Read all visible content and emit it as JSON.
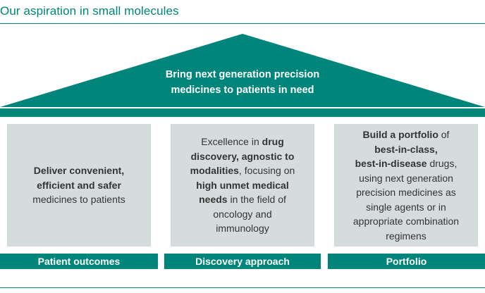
{
  "title": "Our aspiration in small molecules",
  "colors": {
    "accent": "#00857a",
    "pillar_bg": "#d6dcdd",
    "text": "#333333"
  },
  "roof": {
    "line1": "Bring next generation precision",
    "line2": "medicines to patients in need"
  },
  "pillars": [
    {
      "label": "Patient outcomes",
      "lines": [
        [
          {
            "t": "Deliver convenient,",
            "b": true
          }
        ],
        [
          {
            "t": "efficient and safer",
            "b": true
          }
        ],
        [
          {
            "t": "medicines to patients",
            "b": false
          }
        ]
      ]
    },
    {
      "label": "Discovery approach",
      "lines": [
        [
          {
            "t": "Excellence in ",
            "b": false
          },
          {
            "t": "drug",
            "b": true
          }
        ],
        [
          {
            "t": "discovery, agnostic to",
            "b": true
          }
        ],
        [
          {
            "t": "modalities",
            "b": true
          },
          {
            "t": ", focusing on",
            "b": false
          }
        ],
        [
          {
            "t": "high unmet medical",
            "b": true
          }
        ],
        [
          {
            "t": "needs",
            "b": true
          },
          {
            "t": " in the field of",
            "b": false
          }
        ],
        [
          {
            "t": "oncology and",
            "b": false
          }
        ],
        [
          {
            "t": "immunology",
            "b": false
          }
        ]
      ]
    },
    {
      "label": "Portfolio",
      "lines": [
        [
          {
            "t": "Build a portfolio",
            "b": true
          },
          {
            "t": " of",
            "b": false
          }
        ],
        [
          {
            "t": "best-in-class,",
            "b": true
          }
        ],
        [
          {
            "t": "best-in-disease",
            "b": true
          },
          {
            "t": " drugs,",
            "b": false
          }
        ],
        [
          {
            "t": "using next generation",
            "b": false
          }
        ],
        [
          {
            "t": "precision medicines as",
            "b": false
          }
        ],
        [
          {
            "t": "single agents or in",
            "b": false
          }
        ],
        [
          {
            "t": "appropriate combination",
            "b": false
          }
        ],
        [
          {
            "t": "regimens",
            "b": false
          }
        ]
      ]
    }
  ]
}
